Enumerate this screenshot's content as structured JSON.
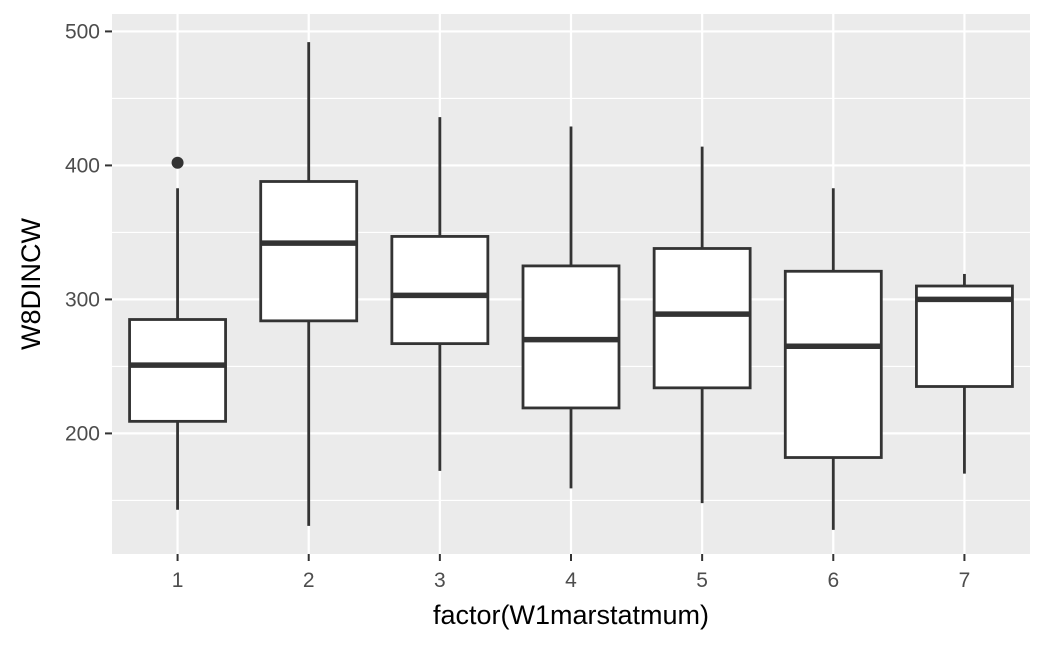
{
  "chart_data": {
    "type": "boxplot",
    "xlabel": "factor(W1marstatmum)",
    "ylabel": "W8DINCW",
    "categories": [
      "1",
      "2",
      "3",
      "4",
      "5",
      "6",
      "7"
    ],
    "ylim": [
      110,
      513
    ],
    "yticks": [
      200,
      300,
      400,
      500
    ],
    "y_minor_ticks": [
      150,
      250,
      350,
      450
    ],
    "boxes": [
      {
        "category": "1",
        "whisker_low": 143,
        "q1": 209,
        "median": 251,
        "q3": 285,
        "whisker_high": 383,
        "outliers": [
          402
        ]
      },
      {
        "category": "2",
        "whisker_low": 131,
        "q1": 284,
        "median": 342,
        "q3": 388,
        "whisker_high": 492,
        "outliers": []
      },
      {
        "category": "3",
        "whisker_low": 172,
        "q1": 267,
        "median": 303,
        "q3": 347,
        "whisker_high": 436,
        "outliers": []
      },
      {
        "category": "4",
        "whisker_low": 159,
        "q1": 219,
        "median": 270,
        "q3": 325,
        "whisker_high": 429,
        "outliers": []
      },
      {
        "category": "5",
        "whisker_low": 148,
        "q1": 234,
        "median": 289,
        "q3": 338,
        "whisker_high": 414,
        "outliers": []
      },
      {
        "category": "6",
        "whisker_low": 128,
        "q1": 182,
        "median": 265,
        "q3": 321,
        "whisker_high": 383,
        "outliers": []
      },
      {
        "category": "7",
        "whisker_low": 170,
        "q1": 235,
        "median": 300,
        "q3": 310,
        "whisker_high": 319,
        "outliers": []
      }
    ],
    "grid": true,
    "legend": "none",
    "colors": {
      "panel_background": "#ebebeb",
      "grid": "#ffffff",
      "box_fill": "#ffffff",
      "box_line": "#333333",
      "tick_label": "#4d4d4d",
      "tick_mark": "#333333",
      "axis_title": "#000000"
    }
  }
}
